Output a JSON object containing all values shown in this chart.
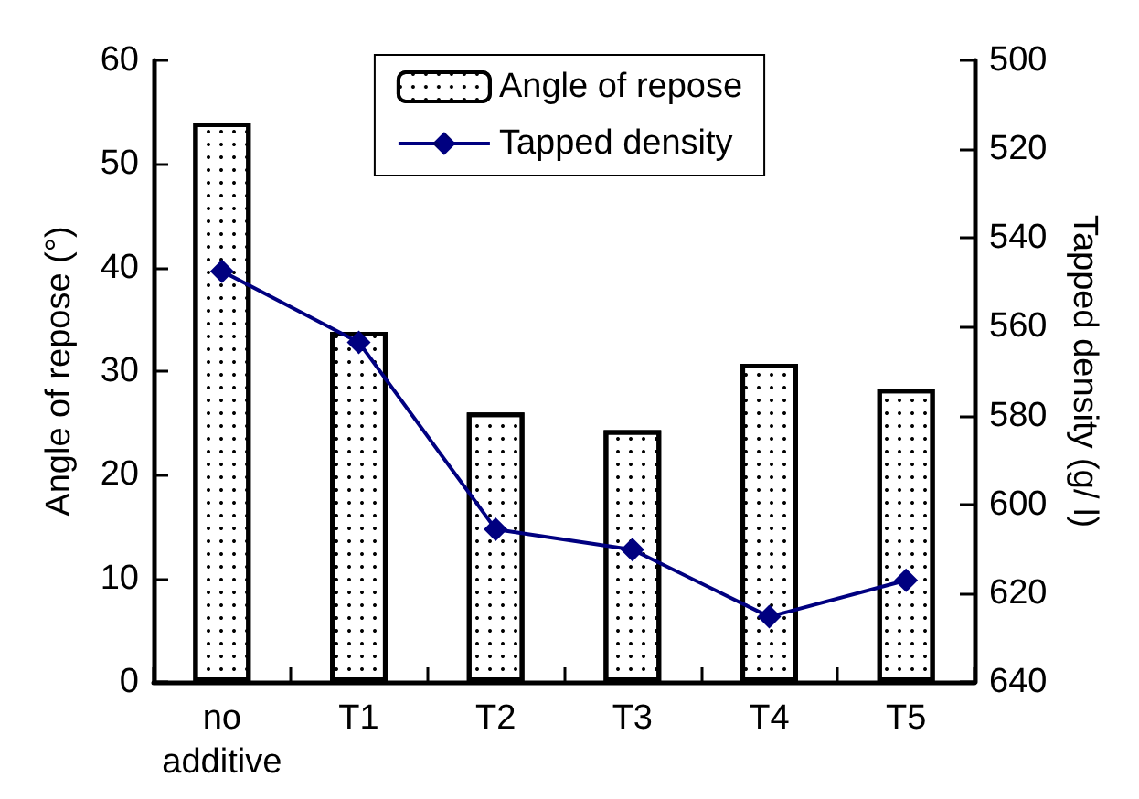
{
  "chart_data": {
    "type": "bar",
    "ylabel": "Angle of repose (°)",
    "y2label": "Tapped density (g/ l)",
    "categories": [
      "no\nadditive",
      "T1",
      "T2",
      "T3",
      "T4",
      "T5"
    ],
    "series": [
      {
        "name": "Angle of repose",
        "color": "#ffffff",
        "values": [
          54.0,
          33.8,
          26.0,
          24.3,
          30.7,
          28.3
        ]
      },
      {
        "name": "Tapped density",
        "type": "line",
        "axis": "y2",
        "color": "#000080",
        "marker": "diamond",
        "values": [
          547.5,
          563.5,
          605.6,
          610.2,
          625.3,
          617.1
        ]
      }
    ],
    "ylim": [
      0,
      60
    ],
    "yticks": [
      0,
      10,
      20,
      30,
      40,
      50,
      60
    ],
    "y2lim": [
      640,
      500
    ],
    "y2ticks": [
      500,
      520,
      540,
      560,
      580,
      600,
      620,
      640
    ],
    "legend": "top",
    "grid": false
  }
}
